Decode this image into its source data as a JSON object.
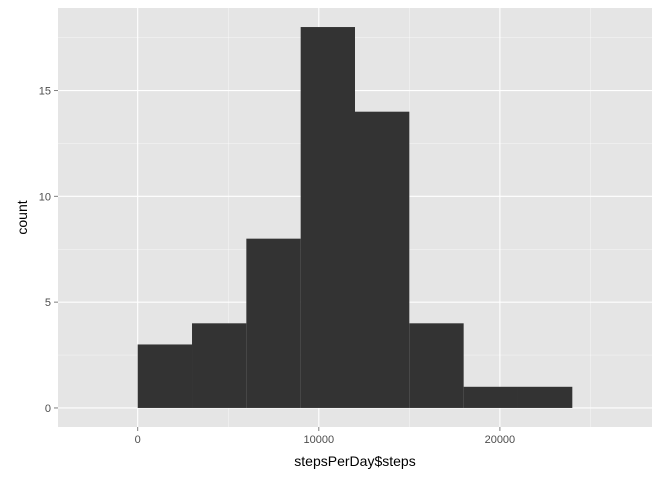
{
  "chart_data": {
    "type": "bar",
    "title": "",
    "xlabel": "stepsPerDay$steps",
    "ylabel": "count",
    "bins": [
      {
        "x0": 0,
        "x1": 3000,
        "count": 3
      },
      {
        "x0": 3000,
        "x1": 6000,
        "count": 4
      },
      {
        "x0": 6000,
        "x1": 9000,
        "count": 8
      },
      {
        "x0": 9000,
        "x1": 12000,
        "count": 18
      },
      {
        "x0": 12000,
        "x1": 15000,
        "count": 14
      },
      {
        "x0": 15000,
        "x1": 18000,
        "count": 4
      },
      {
        "x0": 18000,
        "x1": 21000,
        "count": 1
      },
      {
        "x0": 21000,
        "x1": 24000,
        "count": 1
      }
    ],
    "xlim": [
      -4400,
      28400
    ],
    "ylim": [
      -0.9,
      18.9
    ],
    "xticks": [
      0,
      10000,
      20000
    ],
    "xtick_labels": [
      "0",
      "10000",
      "20000"
    ],
    "yticks": [
      0,
      5,
      10,
      15
    ],
    "ytick_labels": [
      "0",
      "5",
      "10",
      "15"
    ],
    "grid": true,
    "colors": {
      "panel_background": "#e5e5e5",
      "gridline": "#ffffff",
      "bar_fill": "#333333"
    }
  }
}
